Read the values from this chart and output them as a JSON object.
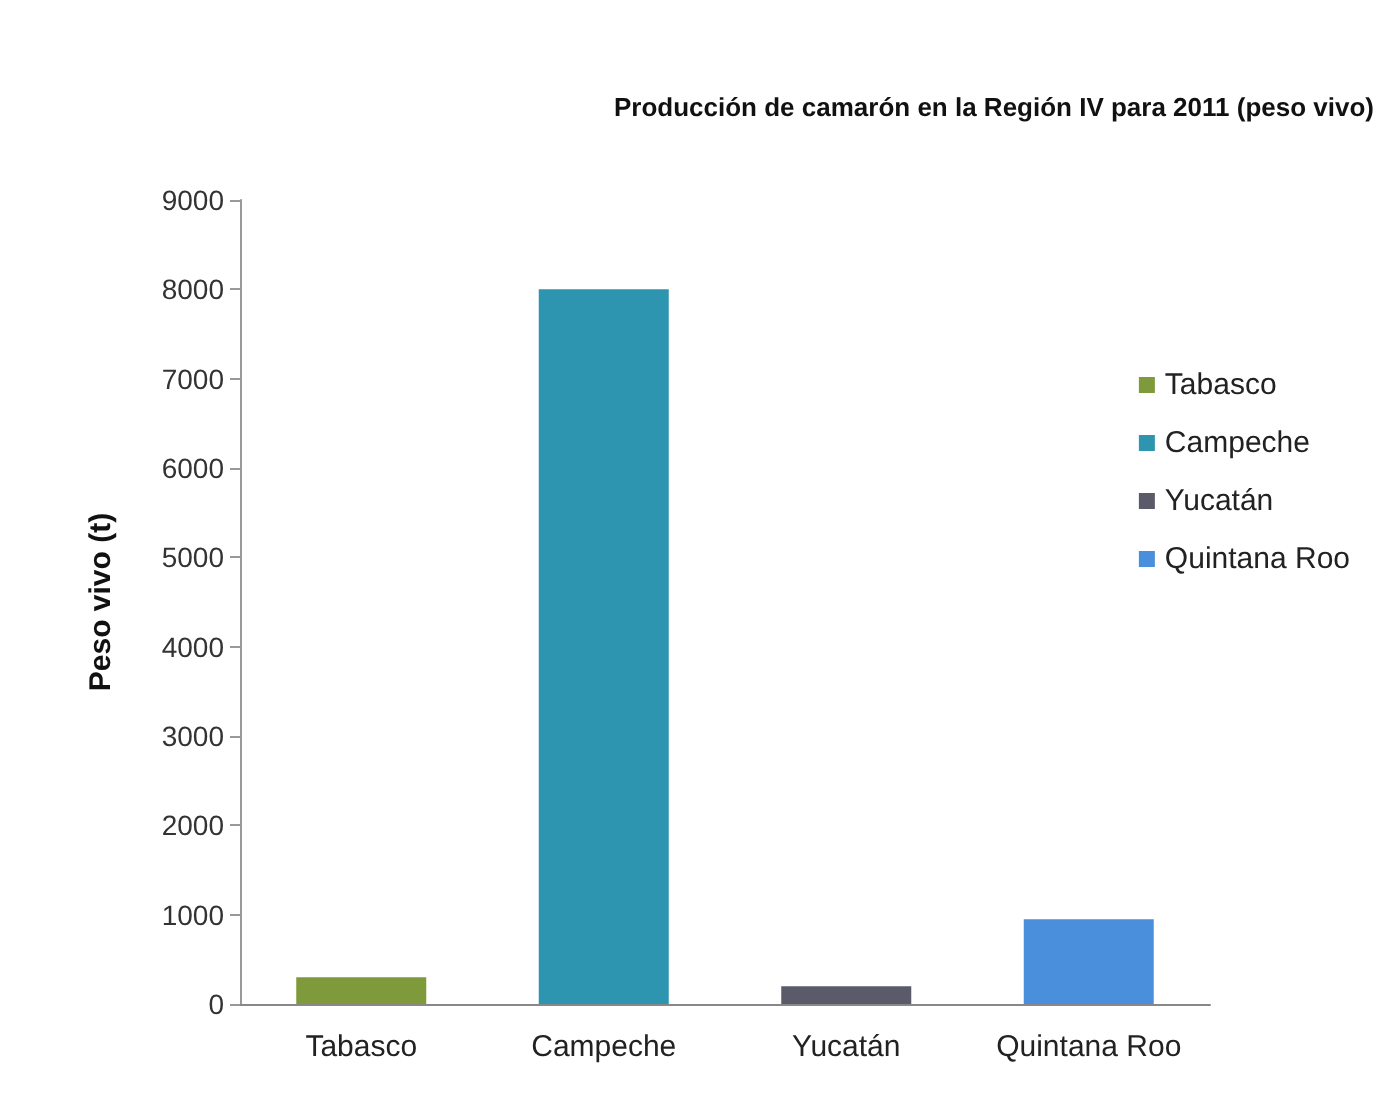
{
  "chart_data": {
    "type": "bar",
    "title": "Producción de camarón en la Región IV para 2011 (peso vivo)",
    "ylabel": "Peso vivo (t)",
    "categories": [
      "Tabasco",
      "Campeche",
      "Yucatán",
      "Quintana Roo"
    ],
    "series": [
      {
        "name": "Tabasco",
        "color": "#7f9a3a",
        "values": [
          300,
          null,
          null,
          null
        ]
      },
      {
        "name": "Campeche",
        "color": "#2e95b0",
        "values": [
          null,
          8000,
          null,
          null
        ]
      },
      {
        "name": "Yucatán",
        "color": "#5a5a6a",
        "values": [
          null,
          null,
          200,
          null
        ]
      },
      {
        "name": "Quintana Roo",
        "color": "#4a8fdc",
        "values": [
          null,
          null,
          null,
          950
        ]
      }
    ],
    "stacked": true,
    "ylim": [
      0,
      9000
    ],
    "yticks": [
      0,
      1000,
      2000,
      3000,
      4000,
      5000,
      6000,
      7000,
      8000,
      9000
    ],
    "grid": false,
    "legend": "right"
  }
}
